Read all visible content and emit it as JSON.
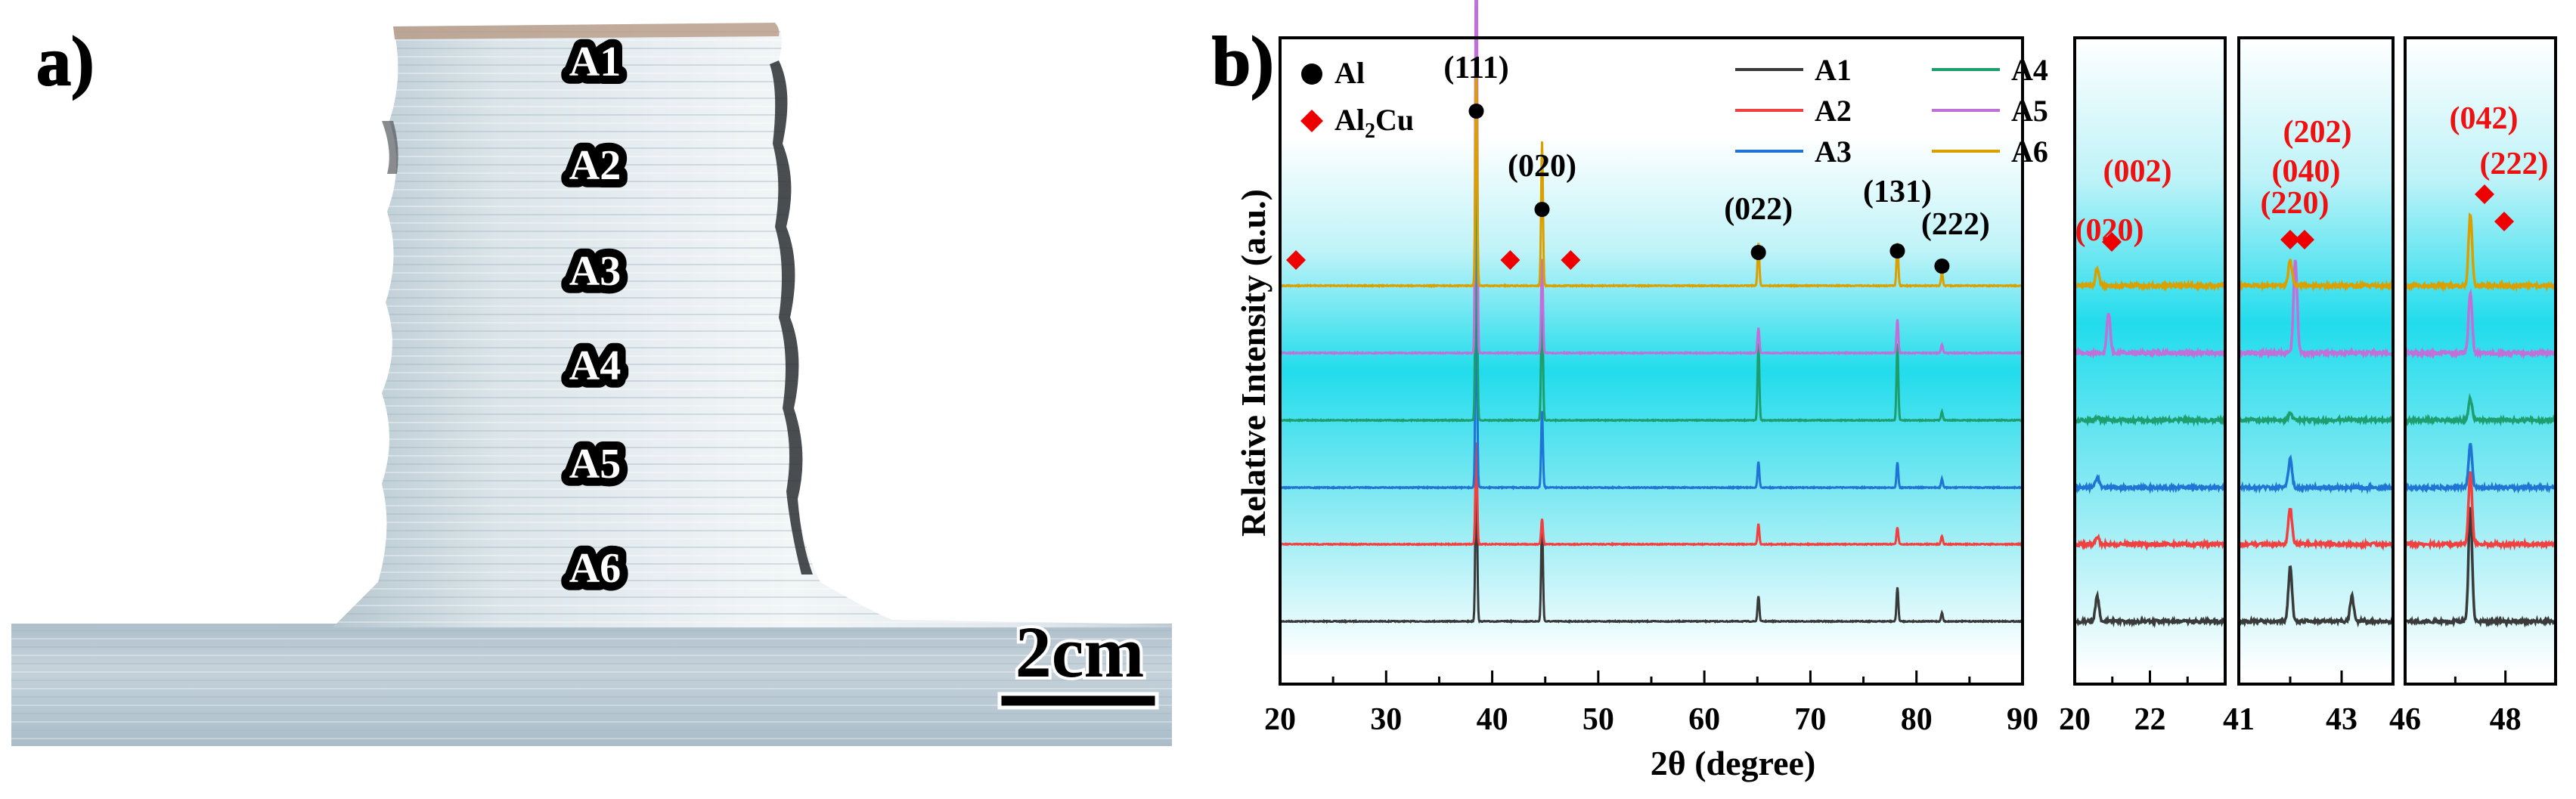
{
  "panel_a": {
    "label": "a)",
    "positions": [
      "A1",
      "A2",
      "A3",
      "A4",
      "A5",
      "A6"
    ],
    "scale_bar": "2cm"
  },
  "panel_b": {
    "label": "b)",
    "ylabel": "Relative Intensity (a.u.)",
    "xlabel": "2θ (degree)",
    "legend_phases": [
      {
        "marker": "circle",
        "color": "#000000",
        "name": "Al"
      },
      {
        "marker": "diamond",
        "color": "#ee0000",
        "name": "Al2Cu"
      }
    ],
    "legend_samples": [
      {
        "name": "A1",
        "color": "#3a3a3a"
      },
      {
        "name": "A4",
        "color": "#1e9e6e"
      },
      {
        "name": "A2",
        "color": "#f04040"
      },
      {
        "name": "A5",
        "color": "#c070d8"
      },
      {
        "name": "A3",
        "color": "#1f74d4"
      },
      {
        "name": "A6",
        "color": "#d9a000"
      }
    ],
    "al_peak_labels": [
      {
        "hkl": "(111)",
        "x": 38.5
      },
      {
        "hkl": "(020)",
        "x": 44.7
      },
      {
        "hkl": "(022)",
        "x": 65.1
      },
      {
        "hkl": "(131)",
        "x": 78.2
      },
      {
        "hkl": "(222)",
        "x": 82.4
      }
    ],
    "al2cu_main_markers": [
      21.5,
      41.7,
      47.4
    ],
    "inset_labels": [
      {
        "panel": 0,
        "hkl": "(020)"
      },
      {
        "panel": 0,
        "hkl": "(002)"
      },
      {
        "panel": 1,
        "hkl": "(220)"
      },
      {
        "panel": 1,
        "hkl": "(040)"
      },
      {
        "panel": 1,
        "hkl": "(202)"
      },
      {
        "panel": 2,
        "hkl": "(042)"
      },
      {
        "panel": 2,
        "hkl": "(222)"
      }
    ]
  },
  "chart_data": [
    {
      "type": "line",
      "title": "",
      "xlabel": "2θ (degree)",
      "ylabel": "Relative Intensity (a.u.)",
      "xlim": [
        20,
        90
      ],
      "xticks": [
        20,
        30,
        40,
        50,
        60,
        70,
        80,
        90
      ],
      "yticks_shown": false,
      "stacked_offset": true,
      "series": [
        {
          "name": "A1",
          "peaks": [
            {
              "x": 38.5,
              "h": 1.0
            },
            {
              "x": 44.7,
              "h": 0.6
            },
            {
              "x": 65.1,
              "h": 0.15
            },
            {
              "x": 78.2,
              "h": 0.2
            },
            {
              "x": 82.4,
              "h": 0.05
            }
          ]
        },
        {
          "name": "A2",
          "peaks": [
            {
              "x": 38.5,
              "h": 0.6
            },
            {
              "x": 44.7,
              "h": 0.15
            },
            {
              "x": 65.1,
              "h": 0.12
            },
            {
              "x": 78.2,
              "h": 0.1
            },
            {
              "x": 82.4,
              "h": 0.05
            }
          ]
        },
        {
          "name": "A3",
          "peaks": [
            {
              "x": 38.5,
              "h": 1.2
            },
            {
              "x": 44.7,
              "h": 0.45
            },
            {
              "x": 65.1,
              "h": 0.15
            },
            {
              "x": 78.2,
              "h": 0.15
            },
            {
              "x": 82.4,
              "h": 0.05
            }
          ]
        },
        {
          "name": "A4",
          "peaks": [
            {
              "x": 38.5,
              "h": 1.5
            },
            {
              "x": 44.7,
              "h": 0.75
            },
            {
              "x": 65.1,
              "h": 0.45
            },
            {
              "x": 78.2,
              "h": 0.45
            },
            {
              "x": 82.4,
              "h": 0.05
            }
          ]
        },
        {
          "name": "A5",
          "peaks": [
            {
              "x": 38.5,
              "h": 2.9
            },
            {
              "x": 44.7,
              "h": 0.55
            },
            {
              "x": 65.1,
              "h": 0.15
            },
            {
              "x": 78.2,
              "h": 0.2
            },
            {
              "x": 82.4,
              "h": 0.05
            }
          ]
        },
        {
          "name": "A6",
          "peaks": [
            {
              "x": 38.5,
              "h": 1.3
            },
            {
              "x": 44.7,
              "h": 0.85
            },
            {
              "x": 65.1,
              "h": 0.25
            },
            {
              "x": 78.2,
              "h": 0.25
            },
            {
              "x": 82.4,
              "h": 0.08
            }
          ]
        }
      ]
    },
    {
      "type": "line",
      "title": "",
      "xlim": [
        20,
        24
      ],
      "xticks": [
        20,
        22
      ],
      "series": [
        {
          "name": "A1",
          "peaks": [
            {
              "x": 20.6,
              "h": 0.35
            }
          ]
        },
        {
          "name": "A2",
          "peaks": [
            {
              "x": 20.6,
              "h": 0.1
            }
          ]
        },
        {
          "name": "A3",
          "peaks": [
            {
              "x": 20.6,
              "h": 0.15
            }
          ]
        },
        {
          "name": "A4",
          "peaks": [
            {
              "x": 20.6,
              "h": 0.05
            }
          ]
        },
        {
          "name": "A5",
          "peaks": [
            {
              "x": 20.9,
              "h": 0.55
            }
          ]
        },
        {
          "name": "A6",
          "peaks": [
            {
              "x": 20.6,
              "h": 0.25
            }
          ]
        }
      ]
    },
    {
      "type": "line",
      "title": "",
      "xlim": [
        41,
        44
      ],
      "xticks": [
        41,
        43
      ],
      "series": [
        {
          "name": "A1",
          "peaks": [
            {
              "x": 42.0,
              "h": 0.75
            },
            {
              "x": 43.2,
              "h": 0.35
            }
          ]
        },
        {
          "name": "A2",
          "peaks": [
            {
              "x": 42.0,
              "h": 0.5
            }
          ]
        },
        {
          "name": "A3",
          "peaks": [
            {
              "x": 42.0,
              "h": 0.4
            }
          ]
        },
        {
          "name": "A4",
          "peaks": [
            {
              "x": 42.0,
              "h": 0.1
            }
          ]
        },
        {
          "name": "A5",
          "peaks": [
            {
              "x": 42.1,
              "h": 1.3
            }
          ]
        },
        {
          "name": "A6",
          "peaks": [
            {
              "x": 42.0,
              "h": 0.35
            }
          ]
        }
      ]
    },
    {
      "type": "line",
      "title": "",
      "xlim": [
        46,
        49
      ],
      "xticks": [
        46,
        48
      ],
      "series": [
        {
          "name": "A1",
          "peaks": [
            {
              "x": 47.3,
              "h": 1.6
            }
          ]
        },
        {
          "name": "A2",
          "peaks": [
            {
              "x": 47.3,
              "h": 1.0
            }
          ]
        },
        {
          "name": "A3",
          "peaks": [
            {
              "x": 47.3,
              "h": 0.6
            }
          ]
        },
        {
          "name": "A4",
          "peaks": [
            {
              "x": 47.3,
              "h": 0.3
            }
          ]
        },
        {
          "name": "A5",
          "peaks": [
            {
              "x": 47.3,
              "h": 0.85
            }
          ]
        },
        {
          "name": "A6",
          "peaks": [
            {
              "x": 47.3,
              "h": 1.0
            }
          ]
        }
      ]
    }
  ]
}
